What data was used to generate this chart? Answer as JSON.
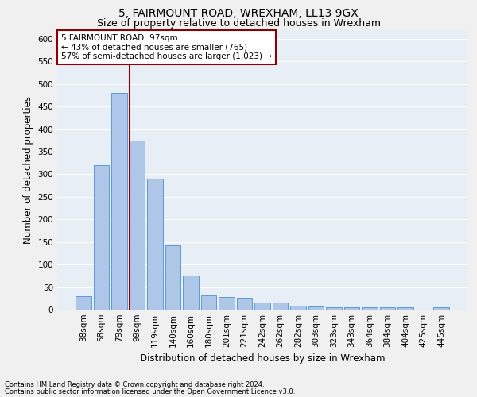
{
  "title1": "5, FAIRMOUNT ROAD, WREXHAM, LL13 9GX",
  "title2": "Size of property relative to detached houses in Wrexham",
  "xlabel": "Distribution of detached houses by size in Wrexham",
  "ylabel": "Number of detached properties",
  "categories": [
    "38sqm",
    "58sqm",
    "79sqm",
    "99sqm",
    "119sqm",
    "140sqm",
    "160sqm",
    "180sqm",
    "201sqm",
    "221sqm",
    "242sqm",
    "262sqm",
    "282sqm",
    "303sqm",
    "323sqm",
    "343sqm",
    "364sqm",
    "384sqm",
    "404sqm",
    "425sqm",
    "445sqm"
  ],
  "values": [
    30,
    320,
    480,
    375,
    290,
    143,
    76,
    31,
    29,
    27,
    15,
    15,
    8,
    7,
    6,
    5,
    5,
    5,
    5,
    0,
    6
  ],
  "bar_color": "#aec6e8",
  "bar_edge_color": "#5b9bd5",
  "vline_color": "#8b0000",
  "annotation_line1": "5 FAIRMOUNT ROAD: 97sqm",
  "annotation_line2": "← 43% of detached houses are smaller (765)",
  "annotation_line3": "57% of semi-detached houses are larger (1,023) →",
  "annotation_box_color": "#8b0000",
  "ylim": [
    0,
    620
  ],
  "yticks": [
    0,
    50,
    100,
    150,
    200,
    250,
    300,
    350,
    400,
    450,
    500,
    550,
    600
  ],
  "footnote1": "Contains HM Land Registry data © Crown copyright and database right 2024.",
  "footnote2": "Contains public sector information licensed under the Open Government Licence v3.0.",
  "fig_background_color": "#f0f0f0",
  "background_color": "#e8eef5",
  "grid_color": "#ffffff",
  "title1_fontsize": 10,
  "title2_fontsize": 9,
  "xlabel_fontsize": 8.5,
  "ylabel_fontsize": 8.5,
  "tick_fontsize": 7.5,
  "annotation_fontsize": 7.5,
  "footnote_fontsize": 6
}
